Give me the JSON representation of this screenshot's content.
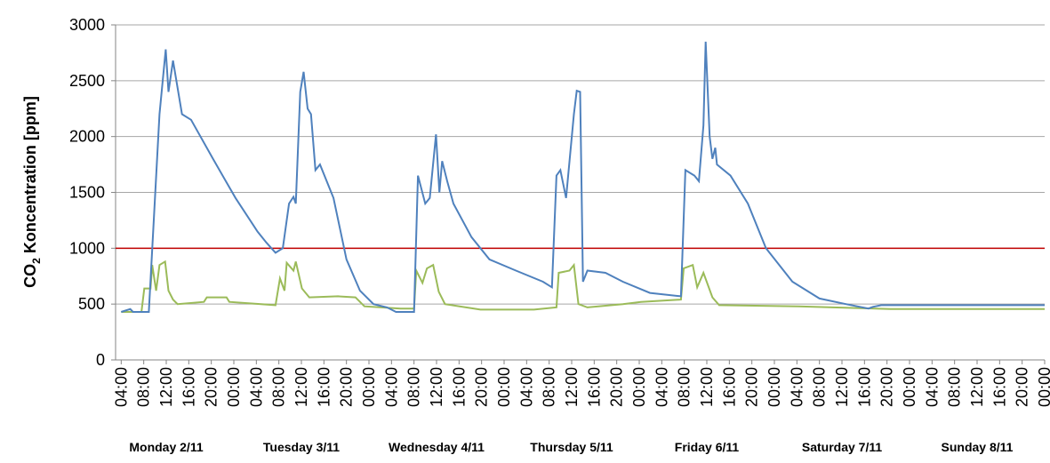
{
  "chart_data": {
    "type": "line",
    "y_label": {
      "prefix": "CO",
      "subscript": "2",
      "rest": " Koncentration [ppm]"
    },
    "xlim": [
      3,
      168
    ],
    "ylim": [
      0,
      3000
    ],
    "yticks": [
      0,
      500,
      1000,
      1500,
      2000,
      2500,
      3000
    ],
    "grid": true,
    "xticks": [
      {
        "value": 4,
        "label": "04:00"
      },
      {
        "value": 8,
        "label": "08:00"
      },
      {
        "value": 12,
        "label": "12:00"
      },
      {
        "value": 16,
        "label": "16:00"
      },
      {
        "value": 20,
        "label": "20:00"
      },
      {
        "value": 24,
        "label": "00:00"
      },
      {
        "value": 28,
        "label": "04:00"
      },
      {
        "value": 32,
        "label": "08:00"
      },
      {
        "value": 36,
        "label": "12:00"
      },
      {
        "value": 40,
        "label": "16:00"
      },
      {
        "value": 44,
        "label": "20:00"
      },
      {
        "value": 48,
        "label": "00:00"
      },
      {
        "value": 52,
        "label": "04:00"
      },
      {
        "value": 56,
        "label": "08:00"
      },
      {
        "value": 60,
        "label": "12:00"
      },
      {
        "value": 64,
        "label": "16:00"
      },
      {
        "value": 68,
        "label": "20:00"
      },
      {
        "value": 72,
        "label": "00:00"
      },
      {
        "value": 76,
        "label": "04:00"
      },
      {
        "value": 80,
        "label": "08:00"
      },
      {
        "value": 84,
        "label": "12:00"
      },
      {
        "value": 88,
        "label": "16:00"
      },
      {
        "value": 92,
        "label": "20:00"
      },
      {
        "value": 96,
        "label": "00:00"
      },
      {
        "value": 100,
        "label": "04:00"
      },
      {
        "value": 104,
        "label": "08:00"
      },
      {
        "value": 108,
        "label": "12:00"
      },
      {
        "value": 112,
        "label": "16:00"
      },
      {
        "value": 116,
        "label": "20:00"
      },
      {
        "value": 120,
        "label": "00:00"
      },
      {
        "value": 124,
        "label": "04:00"
      },
      {
        "value": 128,
        "label": "08:00"
      },
      {
        "value": 132,
        "label": "12:00"
      },
      {
        "value": 136,
        "label": "16:00"
      },
      {
        "value": 140,
        "label": "20:00"
      },
      {
        "value": 144,
        "label": "00:00"
      },
      {
        "value": 148,
        "label": "04:00"
      },
      {
        "value": 152,
        "label": "08:00"
      },
      {
        "value": 156,
        "label": "12:00"
      },
      {
        "value": 160,
        "label": "16:00"
      },
      {
        "value": 164,
        "label": "20:00"
      },
      {
        "value": 168,
        "label": "00:00"
      }
    ],
    "day_labels": [
      "Monday 2/11",
      "Tuesday 3/11",
      "Wednesday 4/11",
      "Thursday 5/11",
      "Friday 6/11",
      "Saturday 7/11",
      "Sunday 8/11"
    ],
    "reference_line": {
      "value": 1000,
      "color": "#c00000"
    },
    "series": [
      {
        "color": "#4f81bd",
        "x": [
          4,
          5.6,
          6.1,
          8.9,
          10.8,
          11.9,
          12.4,
          13.2,
          14.8,
          16.4,
          20.3,
          24.3,
          28.2,
          29.8,
          31.4,
          32.7,
          33.8,
          34.6,
          35,
          35.8,
          36.4,
          37.1,
          37.7,
          38.5,
          39.3,
          41.7,
          44,
          46.4,
          48.8,
          51.2,
          52.8,
          56,
          56.7,
          58,
          58.8,
          59.9,
          60.5,
          61,
          61.9,
          63,
          66.2,
          69.4,
          74.1,
          78.9,
          80.5,
          81.3,
          82,
          83,
          84.4,
          84.9,
          85.5,
          86,
          86.8,
          90,
          93.1,
          97.9,
          103.4,
          104.2,
          105.8,
          106.6,
          107.4,
          107.8,
          108.5,
          109,
          109.5,
          109.8,
          112.2,
          115.3,
          118.5,
          123.2,
          128,
          132.7,
          136.7,
          137.5,
          139,
          168
        ],
        "values": [
          430,
          455,
          430,
          430,
          2200,
          2780,
          2400,
          2680,
          2200,
          2150,
          1800,
          1450,
          1150,
          1050,
          960,
          1000,
          1400,
          1460,
          1400,
          2400,
          2580,
          2250,
          2200,
          1700,
          1750,
          1450,
          900,
          620,
          500,
          470,
          430,
          430,
          1650,
          1400,
          1450,
          2020,
          1500,
          1780,
          1600,
          1400,
          1100,
          900,
          800,
          700,
          650,
          1650,
          1700,
          1450,
          2200,
          2410,
          2400,
          700,
          800,
          780,
          700,
          600,
          570,
          1700,
          1650,
          1600,
          2100,
          2850,
          2000,
          1800,
          1900,
          1750,
          1650,
          1400,
          1000,
          700,
          550,
          500,
          460,
          475,
          490,
          490
        ]
      },
      {
        "color": "#9bbb59",
        "x": [
          4,
          7.6,
          8.1,
          9.2,
          9.5,
          10.2,
          10.8,
          11.8,
          12.4,
          13.2,
          14,
          18.7,
          19.2,
          22.7,
          23.2,
          31.4,
          32.2,
          33,
          33.4,
          34.6,
          35,
          36.1,
          37.4,
          42.5,
          45.6,
          47.2,
          53.6,
          56,
          56.4,
          57.5,
          58.3,
          59.4,
          60.4,
          61.5,
          67.8,
          77.3,
          81.3,
          81.7,
          83.6,
          84.4,
          85.2,
          86.8,
          93.1,
          96.3,
          103.4,
          103.9,
          105.5,
          106.3,
          107.4,
          109,
          110.2,
          124.3,
          140.6,
          168
        ],
        "values": [
          430,
          430,
          640,
          640,
          850,
          620,
          850,
          880,
          620,
          540,
          500,
          520,
          560,
          560,
          520,
          490,
          730,
          620,
          870,
          800,
          880,
          640,
          560,
          570,
          560,
          480,
          460,
          460,
          800,
          690,
          820,
          850,
          610,
          500,
          450,
          450,
          470,
          780,
          800,
          850,
          500,
          470,
          500,
          520,
          540,
          820,
          850,
          650,
          780,
          560,
          490,
          480,
          455,
          455
        ]
      }
    ]
  }
}
